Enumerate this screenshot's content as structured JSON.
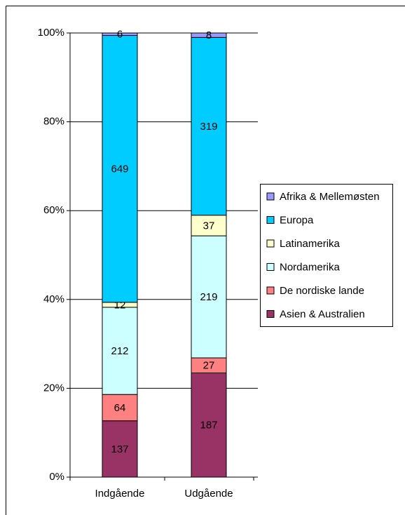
{
  "chart_data": {
    "type": "bar",
    "stack": "percent",
    "categories": [
      "Indgående",
      "Udgående"
    ],
    "series": [
      {
        "name": "Asien & Australien",
        "color": "#993366",
        "values": [
          137,
          187
        ]
      },
      {
        "name": "De nordiske lande",
        "color": "#ff8080",
        "values": [
          64,
          27
        ]
      },
      {
        "name": "Nordamerika",
        "color": "#ccffff",
        "values": [
          212,
          219
        ]
      },
      {
        "name": "Latinamerika",
        "color": "#ffffcc",
        "values": [
          12,
          37
        ]
      },
      {
        "name": "Europa",
        "color": "#00ccff",
        "values": [
          649,
          319
        ]
      },
      {
        "name": "Afrika & Mellemøsten",
        "color": "#9999ff",
        "values": [
          6,
          8
        ]
      }
    ],
    "ylim": [
      0,
      100
    ],
    "yticks": [
      {
        "value": 0,
        "label": "0%"
      },
      {
        "value": 20,
        "label": "20%"
      },
      {
        "value": 40,
        "label": "40%"
      },
      {
        "value": 60,
        "label": "60%"
      },
      {
        "value": 80,
        "label": "80%"
      },
      {
        "value": 100,
        "label": "100%"
      }
    ],
    "grid": true,
    "legend": "right"
  }
}
